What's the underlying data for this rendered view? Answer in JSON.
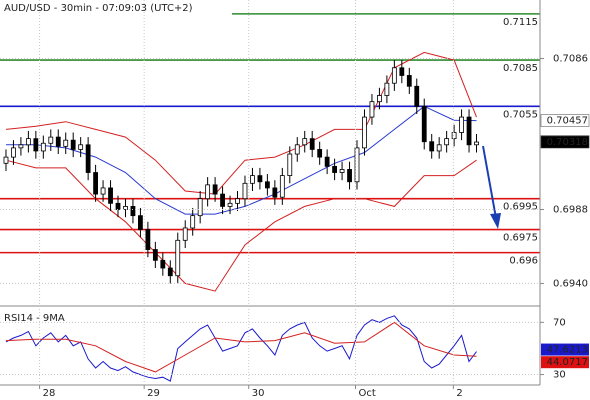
{
  "chart_data": {
    "type": "candlestick",
    "title": "AUD/USD - 30min - 07:09:03 (UTC+2)",
    "candles": {
      "open": [
        0.7018,
        0.7022,
        0.7028,
        0.703,
        0.7034,
        0.7026,
        0.7031,
        0.7035,
        0.7029,
        0.7033,
        0.7027,
        0.703,
        0.7012,
        0.6998,
        0.7002,
        0.6992,
        0.6988,
        0.699,
        0.6984,
        0.6975,
        0.6962,
        0.6955,
        0.695,
        0.6945,
        0.6968,
        0.6976,
        0.6984,
        0.6995,
        0.7004,
        0.6998,
        0.699,
        0.6992,
        0.6995,
        0.7005,
        0.701,
        0.7006,
        0.7002,
        0.6996,
        0.701,
        0.7024,
        0.703,
        0.7034,
        0.7027,
        0.7022,
        0.7016,
        0.7012,
        0.7014,
        0.7006,
        0.7028,
        0.7048,
        0.7058,
        0.7062,
        0.707,
        0.708,
        0.7075,
        0.7068,
        0.7055,
        0.7032,
        0.7026,
        0.703,
        0.7034,
        0.7038,
        0.7048,
        0.703
      ],
      "high": [
        0.7027,
        0.7033,
        0.7035,
        0.7039,
        0.7039,
        0.7036,
        0.704,
        0.704,
        0.7038,
        0.7038,
        0.7035,
        0.7035,
        0.7017,
        0.7007,
        0.7007,
        0.6997,
        0.6995,
        0.6995,
        0.6989,
        0.698,
        0.6967,
        0.696,
        0.6955,
        0.6973,
        0.6981,
        0.6989,
        0.7,
        0.7009,
        0.7009,
        0.7003,
        0.6997,
        0.7,
        0.701,
        0.7015,
        0.7015,
        0.7011,
        0.7007,
        0.7015,
        0.7029,
        0.7035,
        0.7039,
        0.7039,
        0.7032,
        0.7027,
        0.7021,
        0.7019,
        0.7019,
        0.7033,
        0.7053,
        0.7063,
        0.7067,
        0.7075,
        0.7085,
        0.7085,
        0.708,
        0.7073,
        0.706,
        0.7037,
        0.7035,
        0.7039,
        0.7043,
        0.7053,
        0.7053,
        0.7037
      ],
      "low": [
        0.7013,
        0.7017,
        0.7023,
        0.7025,
        0.7021,
        0.7021,
        0.7026,
        0.7024,
        0.7024,
        0.7022,
        0.7022,
        0.7007,
        0.6993,
        0.6993,
        0.6987,
        0.6983,
        0.6983,
        0.6979,
        0.697,
        0.6957,
        0.695,
        0.6945,
        0.694,
        0.694,
        0.6963,
        0.6971,
        0.6979,
        0.699,
        0.6993,
        0.6985,
        0.6985,
        0.6987,
        0.699,
        0.7,
        0.7001,
        0.6997,
        0.6991,
        0.6991,
        0.7005,
        0.7019,
        0.7025,
        0.7022,
        0.7017,
        0.7011,
        0.7007,
        0.7007,
        0.7001,
        0.7001,
        0.7023,
        0.7043,
        0.7053,
        0.7057,
        0.7065,
        0.707,
        0.7063,
        0.705,
        0.7027,
        0.7021,
        0.7021,
        0.7025,
        0.7029,
        0.7033,
        0.7025,
        0.7025
      ],
      "close": [
        0.7022,
        0.7028,
        0.703,
        0.7034,
        0.7026,
        0.7031,
        0.7035,
        0.7029,
        0.7033,
        0.7027,
        0.703,
        0.7012,
        0.6998,
        0.7002,
        0.6992,
        0.6988,
        0.699,
        0.6984,
        0.6975,
        0.6962,
        0.6955,
        0.695,
        0.6945,
        0.6968,
        0.6976,
        0.6984,
        0.6995,
        0.7004,
        0.6998,
        0.699,
        0.6992,
        0.6995,
        0.7005,
        0.701,
        0.7006,
        0.7002,
        0.6996,
        0.701,
        0.7024,
        0.703,
        0.7034,
        0.7027,
        0.7022,
        0.7016,
        0.7012,
        0.7014,
        0.7006,
        0.7028,
        0.7048,
        0.7058,
        0.7062,
        0.707,
        0.708,
        0.7075,
        0.7068,
        0.7055,
        0.7032,
        0.7026,
        0.703,
        0.7034,
        0.7038,
        0.7048,
        0.703,
        0.70318
      ]
    },
    "xlim": [
      -0.8,
      71.5
    ],
    "xticks": [
      {
        "value": 4.5,
        "label": "28"
      },
      {
        "value": 18.5,
        "label": "29"
      },
      {
        "value": 32.5,
        "label": "30"
      },
      {
        "value": 46.8,
        "label": "Oct"
      },
      {
        "value": 59.9,
        "label": "2"
      }
    ],
    "ylim": [
      0.6926,
      0.7124
    ],
    "yticks": [
      0.7086,
      0.6988,
      {
        "value": 0.694,
        "label": "0.6940"
      }
    ],
    "levels": [
      {
        "value": 0.7115,
        "color": "#2e8b2e"
      },
      {
        "value": 0.7085,
        "color": "#2e8b2e"
      },
      {
        "value": 0.7055,
        "color": "#1a1acc"
      },
      {
        "value": 0.6995,
        "color": "#dd1111"
      },
      {
        "value": 0.6975,
        "color": "#dd1111"
      },
      {
        "value": 0.696,
        "color": "#dd1111"
      }
    ],
    "overlays": [
      {
        "color": "#2a3bd0",
        "x": [
          0,
          4,
          8,
          12,
          16,
          20,
          24,
          28,
          32,
          36,
          40,
          44,
          48,
          52,
          56,
          60,
          63
        ],
        "values": [
          0.703,
          0.703,
          0.7028,
          0.7022,
          0.7012,
          0.6995,
          0.6985,
          0.6985,
          0.699,
          0.6998,
          0.7008,
          0.7018,
          0.7025,
          0.704,
          0.7055,
          0.7046,
          0.70457
        ]
      },
      {
        "color": "#d42020",
        "x": [
          0,
          4,
          8,
          12,
          16,
          20,
          24,
          28,
          32,
          36,
          40,
          44,
          48,
          52,
          56,
          60,
          63
        ],
        "values": [
          0.704,
          0.7042,
          0.7045,
          0.704,
          0.7035,
          0.702,
          0.7,
          0.6998,
          0.702,
          0.7022,
          0.703,
          0.704,
          0.704,
          0.708,
          0.709,
          0.7085,
          0.7048
        ]
      },
      {
        "color": "#d42020",
        "x": [
          0,
          4,
          8,
          12,
          16,
          20,
          24,
          28,
          32,
          36,
          40,
          44,
          48,
          52,
          56,
          60,
          63
        ],
        "values": [
          0.702,
          0.7015,
          0.7015,
          0.6995,
          0.698,
          0.696,
          0.694,
          0.6935,
          0.6965,
          0.698,
          0.699,
          0.6995,
          0.6995,
          0.699,
          0.701,
          0.701,
          0.702
        ]
      }
    ],
    "price_labels": [
      {
        "value": 0.70457,
        "bg": "#ffffff",
        "fg": "#000000"
      },
      {
        "value": 0.70321,
        "bg": "#ffffff",
        "fg": "#dd1111"
      },
      {
        "value": 0.70318,
        "bg": "#000000",
        "fg": "#ffffff"
      }
    ],
    "rsi": {
      "title": "RSI14 - 9MA",
      "ylim": [
        22,
        81
      ],
      "yticks": [
        70,
        30
      ],
      "line": {
        "color": "#1a1acc",
        "values": [
          55,
          58,
          60,
          63,
          52,
          58,
          62,
          55,
          60,
          52,
          55,
          42,
          35,
          40,
          35,
          33,
          36,
          32,
          30,
          28,
          27,
          28,
          25,
          50,
          55,
          60,
          65,
          68,
          58,
          48,
          50,
          52,
          62,
          65,
          58,
          52,
          45,
          60,
          65,
          68,
          70,
          58,
          52,
          48,
          50,
          52,
          42,
          60,
          68,
          72,
          70,
          73,
          75,
          68,
          65,
          58,
          40,
          35,
          38,
          45,
          52,
          60,
          40,
          47.6213
        ]
      },
      "ma": {
        "color": "#d42020",
        "x": [
          0,
          4,
          8,
          12,
          16,
          20,
          24,
          28,
          32,
          36,
          40,
          44,
          48,
          52,
          56,
          60,
          63
        ],
        "values": [
          56,
          57,
          57,
          52,
          40,
          32,
          45,
          58,
          55,
          56,
          62,
          54,
          55,
          70,
          52,
          45,
          44.0717
        ]
      },
      "labels": [
        {
          "value": 47.6213,
          "bg": "#1a1acc",
          "fg": "#ffffff"
        },
        {
          "value": 44.0717,
          "bg": "#dd1111",
          "fg": "#ffffff"
        }
      ]
    }
  }
}
